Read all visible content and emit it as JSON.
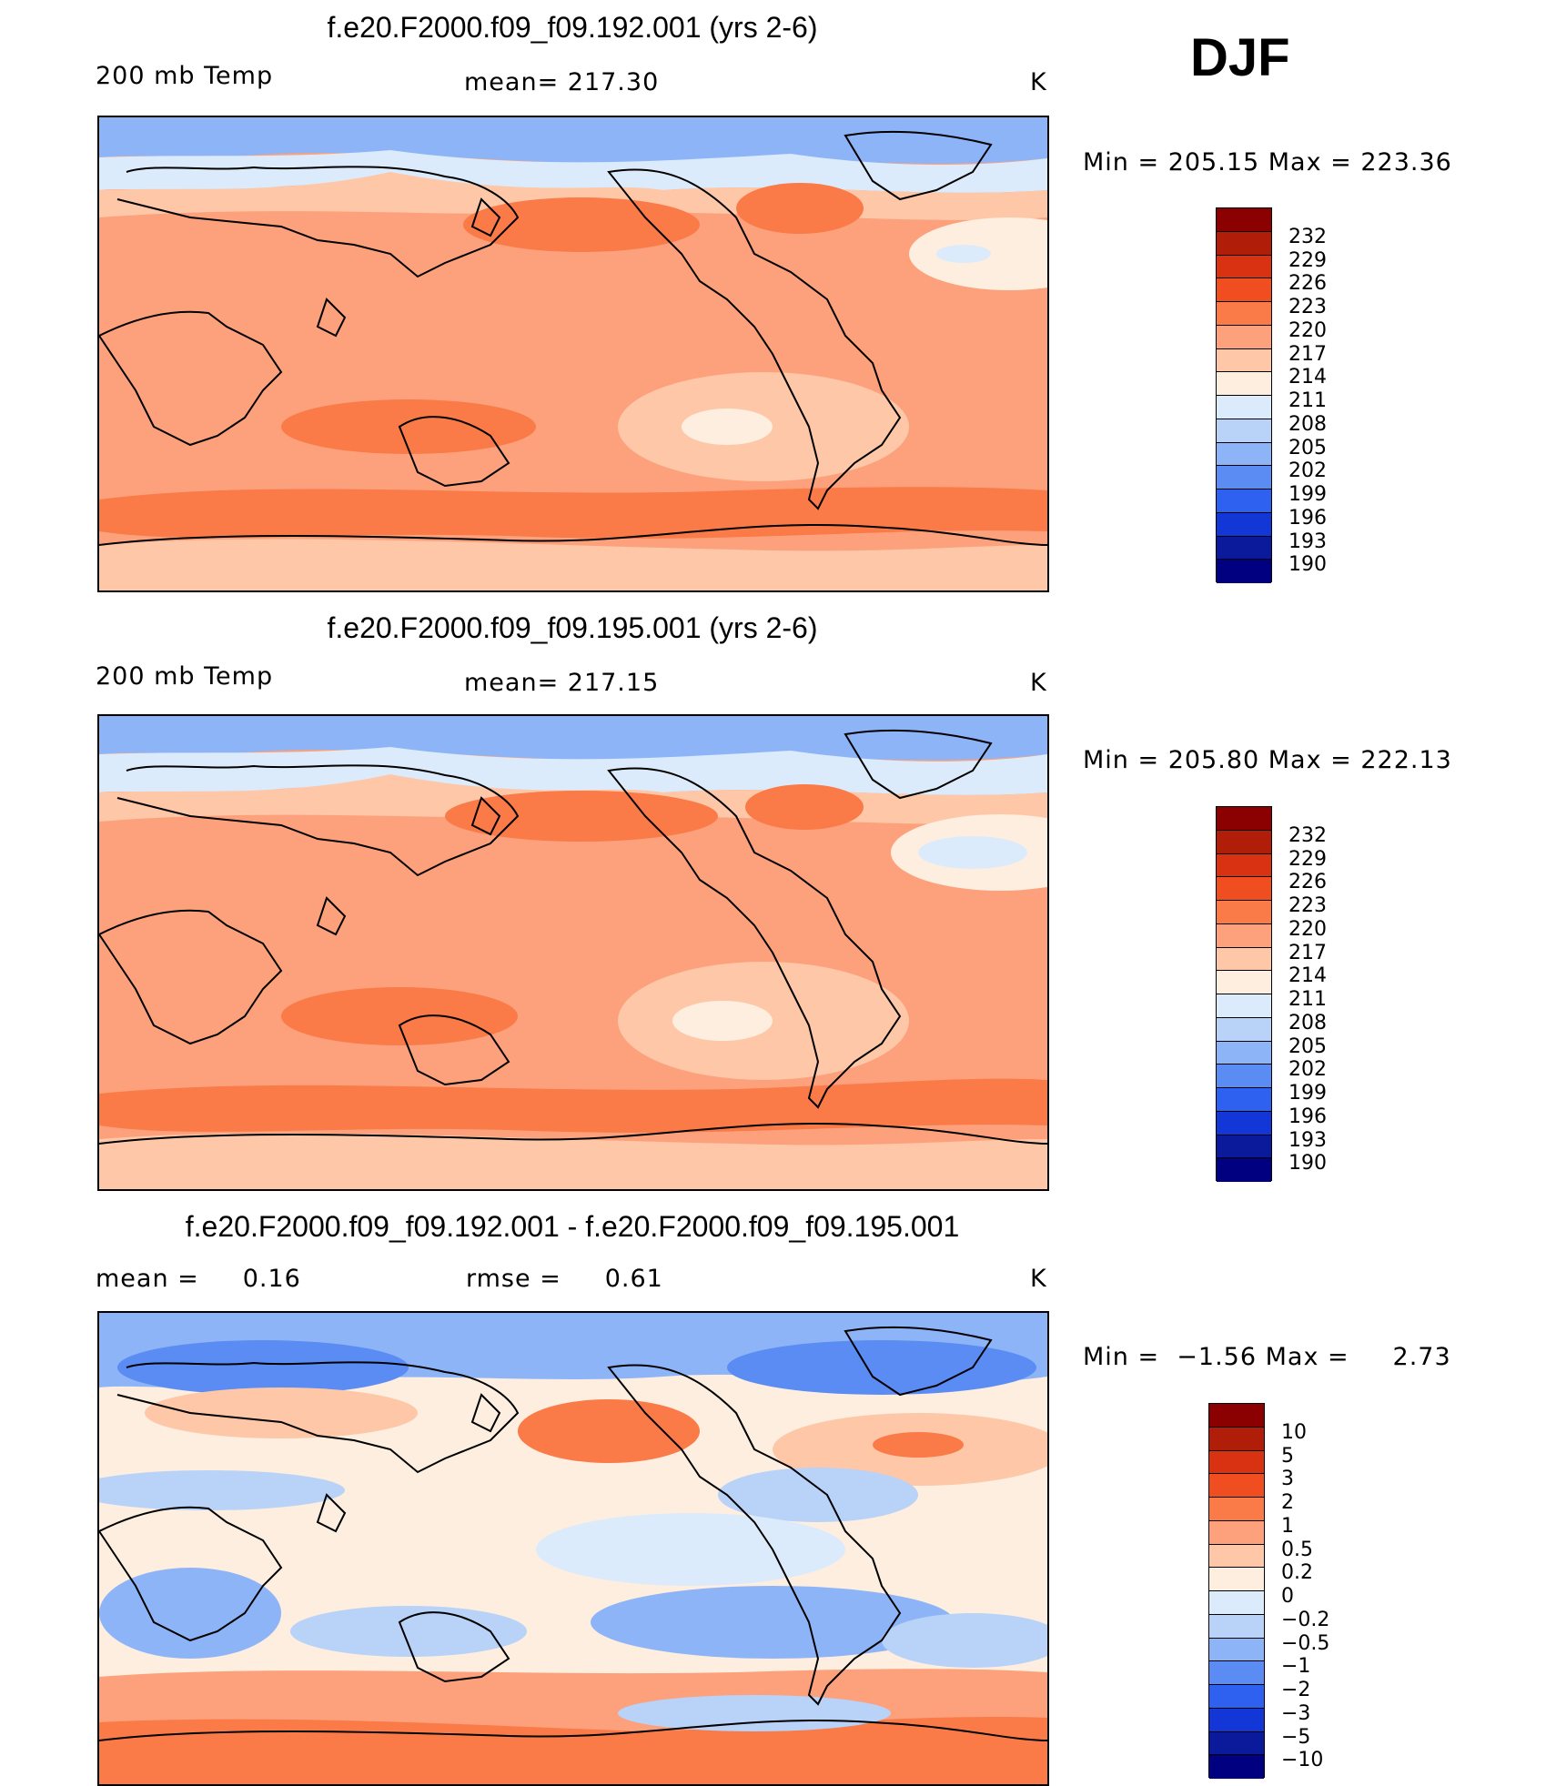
{
  "season": "DJF",
  "panels": [
    {
      "title": "f.e20.F2000.f09_f09.192.001 (yrs 2-6)",
      "left_label": "200 mb Temp",
      "center_label": "mean= 217.30",
      "units": "K",
      "minmax": "Min = 205.15 Max = 223.36",
      "field": "model"
    },
    {
      "title": "f.e20.F2000.f09_f09.195.001 (yrs 2-6)",
      "left_label": "200 mb Temp",
      "center_label": "mean= 217.15",
      "units": "K",
      "minmax": "Min = 205.80 Max = 222.13",
      "field": "model"
    },
    {
      "title": "f.e20.F2000.f09_f09.192.001 - f.e20.F2000.f09_f09.195.001",
      "left_label": "mean =     0.16",
      "center_label": "rmse =     0.61",
      "units": "K",
      "minmax": "Min =  −1.56 Max =     2.73",
      "field": "diff"
    }
  ],
  "colorbars": {
    "abs": {
      "labels": [
        "232",
        "229",
        "226",
        "223",
        "220",
        "217",
        "214",
        "211",
        "208",
        "205",
        "202",
        "199",
        "196",
        "193",
        "190"
      ],
      "colors": [
        "#8b0000",
        "#b01e0a",
        "#d83212",
        "#f04e20",
        "#fa7a48",
        "#fca17c",
        "#fdc7a8",
        "#fdeedf",
        "#dcebfb",
        "#b8d2f8",
        "#8eb4f8",
        "#5a8cf4",
        "#2f61f0",
        "#1237d6",
        "#0a1a9a",
        "#000080"
      ]
    },
    "diff": {
      "labels": [
        "10",
        "5",
        "3",
        "2",
        "1",
        "0.5",
        "0.2",
        "0",
        "−0.2",
        "−0.5",
        "−1",
        "−2",
        "−3",
        "−5",
        "−10"
      ],
      "colors": [
        "#8b0000",
        "#b01e0a",
        "#d83212",
        "#f04e20",
        "#fa7a48",
        "#fca17c",
        "#fdc7a8",
        "#fdeedf",
        "#dcebfb",
        "#b8d2f8",
        "#8eb4f8",
        "#5a8cf4",
        "#2f61f0",
        "#1237d6",
        "#0a1a9a",
        "#000080"
      ]
    }
  }
}
